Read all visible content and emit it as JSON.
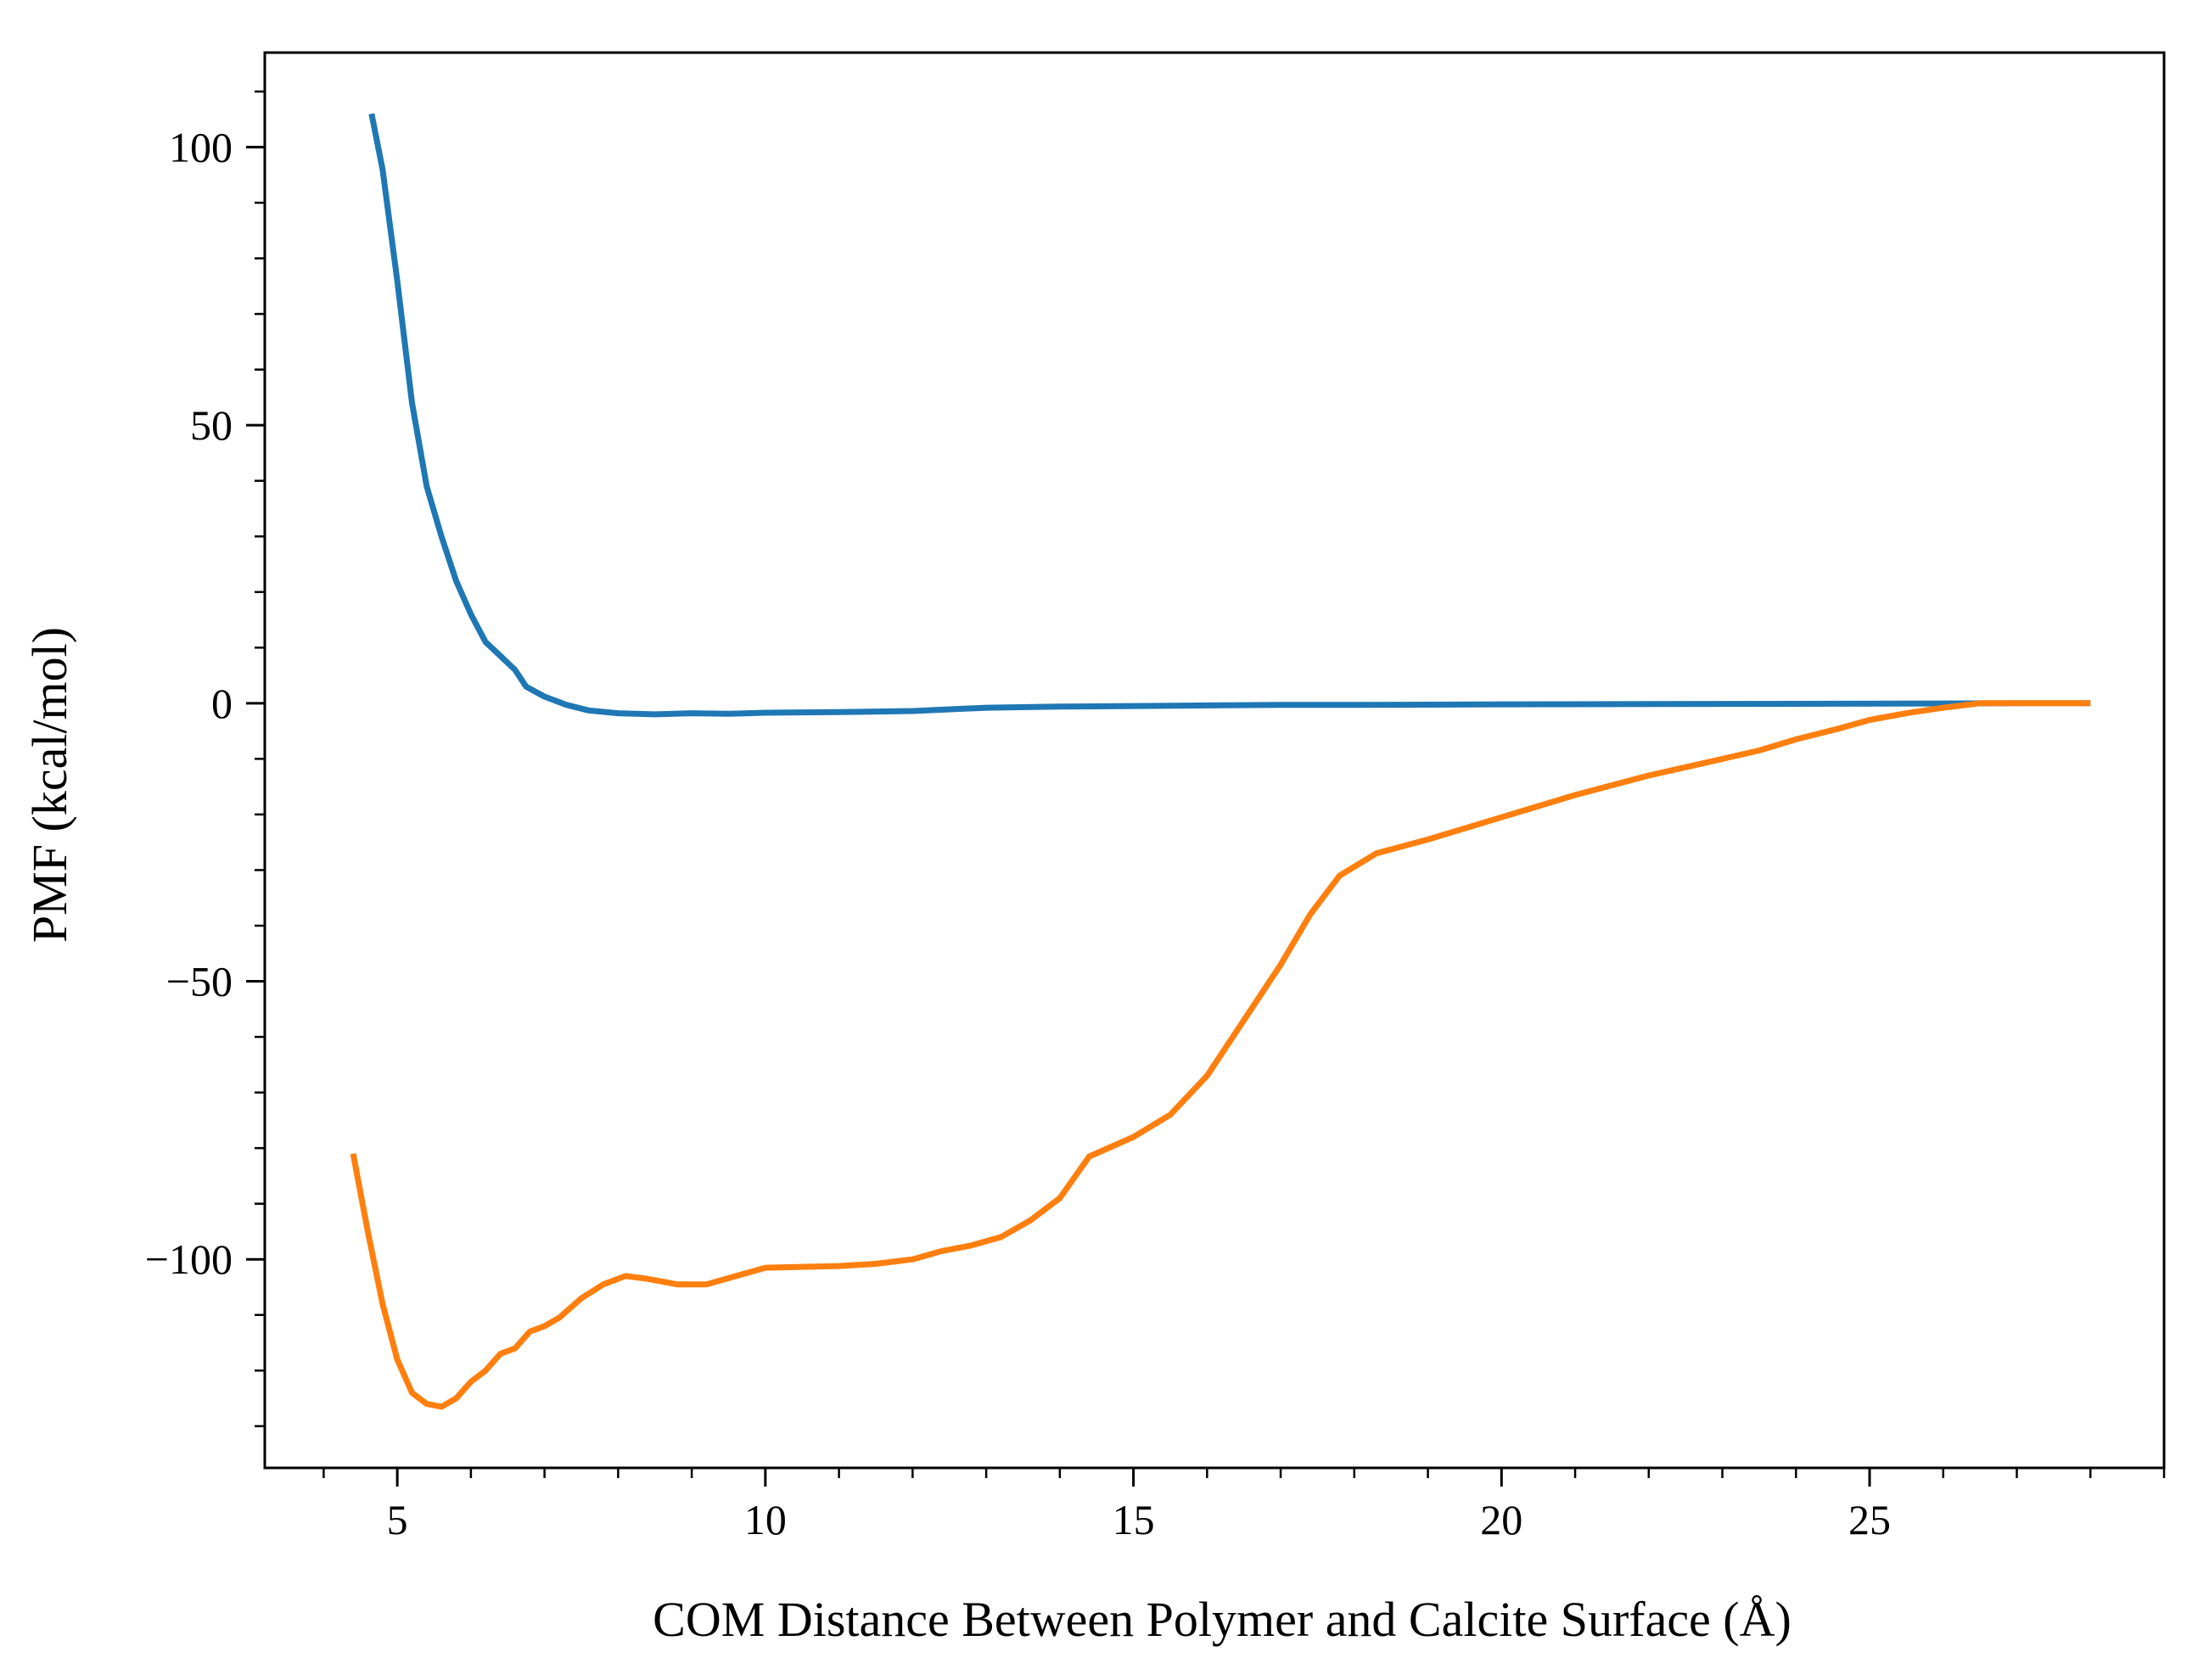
{
  "chart_data": {
    "type": "line",
    "title": "",
    "xlabel": "COM Distance Between Polymer and Calcite Surface (Å)",
    "ylabel": "PMF (kcal/mol)",
    "xlim": [
      3.2,
      29.0
    ],
    "ylim": [
      -137.5,
      117.0
    ],
    "xticks": [
      5,
      10,
      15,
      20,
      25
    ],
    "xtick_labels": [
      "5",
      "10",
      "15",
      "20",
      "25"
    ],
    "yticks": [
      100,
      50,
      0,
      -50,
      -100
    ],
    "ytick_labels": [
      "100",
      "50",
      "0",
      "−50",
      "−100"
    ],
    "x_minor_step": 1,
    "y_minor_step": 10,
    "grid": false,
    "series": [
      {
        "name": "series-blue",
        "color": "#1f77b4",
        "points": [
          [
            4.65,
            106
          ],
          [
            4.8,
            96
          ],
          [
            5.0,
            76
          ],
          [
            5.2,
            54
          ],
          [
            5.4,
            39
          ],
          [
            5.6,
            30
          ],
          [
            5.8,
            22
          ],
          [
            6.0,
            16
          ],
          [
            6.2,
            11
          ],
          [
            6.4,
            8.5
          ],
          [
            6.6,
            6
          ],
          [
            6.75,
            3
          ],
          [
            7.0,
            1.2
          ],
          [
            7.3,
            -0.3
          ],
          [
            7.6,
            -1.3
          ],
          [
            8.0,
            -1.8
          ],
          [
            8.5,
            -2.0
          ],
          [
            9.0,
            -1.8
          ],
          [
            9.5,
            -1.9
          ],
          [
            10,
            -1.7
          ],
          [
            11,
            -1.6
          ],
          [
            12,
            -1.4
          ],
          [
            13,
            -0.8
          ],
          [
            14,
            -0.6
          ],
          [
            15,
            -0.5
          ],
          [
            16,
            -0.4
          ],
          [
            17,
            -0.3
          ],
          [
            18,
            -0.3
          ],
          [
            19,
            -0.25
          ],
          [
            20,
            -0.2
          ],
          [
            22,
            -0.15
          ],
          [
            24,
            -0.1
          ],
          [
            26,
            -0.05
          ],
          [
            27,
            0
          ],
          [
            28,
            0
          ]
        ]
      },
      {
        "name": "series-orange",
        "color": "#ff7f0e",
        "points": [
          [
            4.4,
            -81
          ],
          [
            4.6,
            -95
          ],
          [
            4.8,
            -108
          ],
          [
            5.0,
            -118
          ],
          [
            5.2,
            -124
          ],
          [
            5.4,
            -126
          ],
          [
            5.6,
            -126.5
          ],
          [
            5.8,
            -125
          ],
          [
            6.0,
            -122
          ],
          [
            6.2,
            -120
          ],
          [
            6.4,
            -117
          ],
          [
            6.6,
            -116
          ],
          [
            6.8,
            -113
          ],
          [
            7.0,
            -112
          ],
          [
            7.2,
            -110.5
          ],
          [
            7.5,
            -107
          ],
          [
            7.8,
            -104.5
          ],
          [
            8.1,
            -103
          ],
          [
            8.4,
            -103.5
          ],
          [
            8.8,
            -104.5
          ],
          [
            9.2,
            -104.5
          ],
          [
            9.6,
            -103
          ],
          [
            10,
            -101.5
          ],
          [
            11,
            -101.2
          ],
          [
            11.5,
            -100.8
          ],
          [
            12,
            -100
          ],
          [
            12.4,
            -98.5
          ],
          [
            12.8,
            -97.5
          ],
          [
            13.2,
            -96
          ],
          [
            13.6,
            -93
          ],
          [
            14.0,
            -89
          ],
          [
            14.4,
            -81.5
          ],
          [
            15.0,
            -78
          ],
          [
            15.5,
            -74
          ],
          [
            16.0,
            -67
          ],
          [
            16.5,
            -57
          ],
          [
            17.0,
            -47
          ],
          [
            17.4,
            -38
          ],
          [
            17.8,
            -31
          ],
          [
            18.3,
            -27
          ],
          [
            19.0,
            -24.5
          ],
          [
            20.0,
            -20.5
          ],
          [
            21.0,
            -16.5
          ],
          [
            22.0,
            -13
          ],
          [
            22.4,
            -11.8
          ],
          [
            23.0,
            -10
          ],
          [
            23.5,
            -8.5
          ],
          [
            24.0,
            -6.5
          ],
          [
            24.6,
            -4.5
          ],
          [
            25.0,
            -3
          ],
          [
            25.5,
            -1.8
          ],
          [
            26.0,
            -0.8
          ],
          [
            26.5,
            0
          ],
          [
            27,
            0
          ],
          [
            28,
            0
          ]
        ]
      }
    ]
  }
}
